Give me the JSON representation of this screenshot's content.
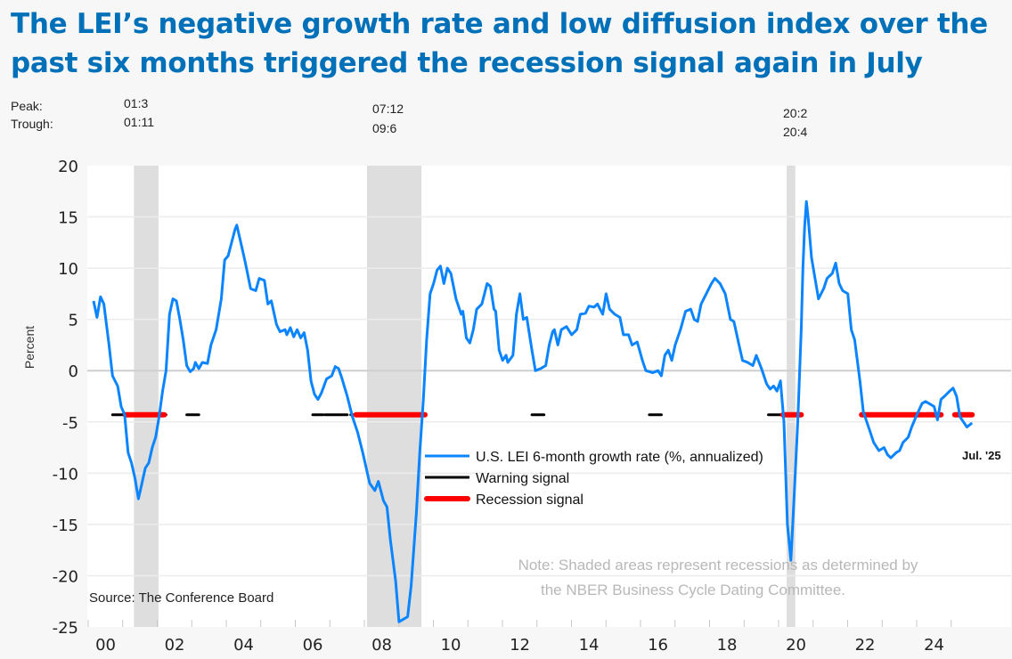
{
  "title_lines": [
    "The LEI’s negative growth rate and low diffusion index over the",
    "past six months triggered the recession signal again in July"
  ],
  "peak_label": "Peak:",
  "trough_label": "Trough:",
  "recession_dates": [
    {
      "peak": "01:3",
      "trough": "01:11"
    },
    {
      "peak": "07:12",
      "trough": "09:6"
    },
    {
      "peak": "20:2",
      "trough": "20:4"
    }
  ],
  "chart_data": {
    "type": "line",
    "title": "The LEI’s negative growth rate and low diffusion index over the past six months triggered the recession signal again in July",
    "xlabel": "",
    "ylabel": "Percent",
    "ylim": [
      -25,
      20
    ],
    "yticks": [
      20,
      15,
      10,
      5,
      0,
      -5,
      -10,
      -15,
      -20,
      -25
    ],
    "ytick_labels": [
      "20",
      "15",
      "10",
      "5",
      "0",
      "-5",
      "-10",
      "-15",
      "-20",
      "-25"
    ],
    "xlim": [
      2000,
      2025.75
    ],
    "xtick_labels": [
      "00",
      "02",
      "04",
      "06",
      "08",
      "10",
      "12",
      "14",
      "16",
      "18",
      "20",
      "22",
      "24"
    ],
    "grid": true,
    "legend_position": "center",
    "legend": [
      {
        "name": "U.S. LEI 6-month growth rate (%, annualized)",
        "color": "#0a84ff"
      },
      {
        "name": "Warning signal",
        "color": "#000000"
      },
      {
        "name": "Recession signal",
        "color": "#ff0000"
      }
    ],
    "recessions": [
      [
        2001.17,
        2001.88
      ],
      [
        2007.92,
        2009.5
      ],
      [
        2020.08,
        2020.33
      ]
    ],
    "signal_level": -4.3,
    "series": [
      {
        "name": "U.S. LEI 6-month growth rate (%, annualized)",
        "color": "#0a84ff",
        "points": [
          [
            2000.0,
            6.8
          ],
          [
            2000.1,
            5.2
          ],
          [
            2000.2,
            7.2
          ],
          [
            2000.3,
            6.5
          ],
          [
            2000.45,
            2.5
          ],
          [
            2000.55,
            -0.5
          ],
          [
            2000.7,
            -1.5
          ],
          [
            2000.8,
            -3.5
          ],
          [
            2000.9,
            -4.3
          ],
          [
            2001.0,
            -8
          ],
          [
            2001.1,
            -9
          ],
          [
            2001.2,
            -10.5
          ],
          [
            2001.3,
            -12.5
          ],
          [
            2001.4,
            -11
          ],
          [
            2001.5,
            -9.5
          ],
          [
            2001.6,
            -9
          ],
          [
            2001.7,
            -7.5
          ],
          [
            2001.8,
            -6.5
          ],
          [
            2001.9,
            -4.5
          ],
          [
            2002.0,
            -2
          ],
          [
            2002.1,
            0
          ],
          [
            2002.2,
            5.5
          ],
          [
            2002.3,
            7
          ],
          [
            2002.4,
            6.8
          ],
          [
            2002.5,
            5
          ],
          [
            2002.6,
            3
          ],
          [
            2002.7,
            0.5
          ],
          [
            2002.8,
            -0.1
          ],
          [
            2002.9,
            0.2
          ],
          [
            2002.95,
            0.8
          ],
          [
            2003.05,
            0.2
          ],
          [
            2003.15,
            0.8
          ],
          [
            2003.3,
            0.7
          ],
          [
            2003.4,
            2.5
          ],
          [
            2003.55,
            4
          ],
          [
            2003.7,
            7
          ],
          [
            2003.8,
            10.8
          ],
          [
            2003.9,
            11.2
          ],
          [
            2004.0,
            12.5
          ],
          [
            2004.1,
            13.8
          ],
          [
            2004.15,
            14.2
          ],
          [
            2004.3,
            12
          ],
          [
            2004.4,
            10.5
          ],
          [
            2004.55,
            8
          ],
          [
            2004.7,
            7.8
          ],
          [
            2004.8,
            9
          ],
          [
            2004.95,
            8.8
          ],
          [
            2005.05,
            6.5
          ],
          [
            2005.15,
            6.8
          ],
          [
            2005.3,
            4.5
          ],
          [
            2005.4,
            3.8
          ],
          [
            2005.55,
            4
          ],
          [
            2005.6,
            3.5
          ],
          [
            2005.7,
            4.2
          ],
          [
            2005.8,
            3.3
          ],
          [
            2005.9,
            4
          ],
          [
            2006.0,
            3.2
          ],
          [
            2006.1,
            3.7
          ],
          [
            2006.2,
            2
          ],
          [
            2006.3,
            -1
          ],
          [
            2006.4,
            -2.3
          ],
          [
            2006.5,
            -2.8
          ],
          [
            2006.6,
            -2.2
          ],
          [
            2006.75,
            -0.8
          ],
          [
            2006.9,
            -0.5
          ],
          [
            2007.0,
            0.4
          ],
          [
            2007.1,
            0.2
          ],
          [
            2007.2,
            -0.8
          ],
          [
            2007.35,
            -2.5
          ],
          [
            2007.5,
            -4.5
          ],
          [
            2007.65,
            -6
          ],
          [
            2007.8,
            -8
          ],
          [
            2008.0,
            -11
          ],
          [
            2008.15,
            -11.7
          ],
          [
            2008.25,
            -10.8
          ],
          [
            2008.4,
            -12.7
          ],
          [
            2008.5,
            -13.3
          ],
          [
            2008.6,
            -16.5
          ],
          [
            2008.75,
            -20.5
          ],
          [
            2008.85,
            -24.5
          ],
          [
            2008.95,
            -24.3
          ],
          [
            2009.1,
            -24
          ],
          [
            2009.2,
            -21
          ],
          [
            2009.35,
            -14
          ],
          [
            2009.45,
            -8
          ],
          [
            2009.55,
            -3
          ],
          [
            2009.65,
            3
          ],
          [
            2009.75,
            7.5
          ],
          [
            2009.85,
            8.5
          ],
          [
            2009.95,
            9.8
          ],
          [
            2010.05,
            10.2
          ],
          [
            2010.15,
            8.5
          ],
          [
            2010.25,
            10
          ],
          [
            2010.35,
            9.5
          ],
          [
            2010.5,
            7
          ],
          [
            2010.65,
            5.5
          ],
          [
            2010.7,
            5.8
          ],
          [
            2010.8,
            3.2
          ],
          [
            2010.9,
            2.7
          ],
          [
            2011.0,
            4
          ],
          [
            2011.1,
            6
          ],
          [
            2011.25,
            6.5
          ],
          [
            2011.4,
            8.5
          ],
          [
            2011.5,
            8.2
          ],
          [
            2011.6,
            6
          ],
          [
            2011.65,
            5.8
          ],
          [
            2011.75,
            2
          ],
          [
            2011.85,
            1
          ],
          [
            2011.95,
            1.5
          ],
          [
            2012.0,
            0.8
          ],
          [
            2012.15,
            1.5
          ],
          [
            2012.25,
            5.5
          ],
          [
            2012.35,
            7.5
          ],
          [
            2012.45,
            5
          ],
          [
            2012.55,
            5.2
          ],
          [
            2012.7,
            2
          ],
          [
            2012.8,
            0
          ],
          [
            2012.95,
            0.2
          ],
          [
            2013.1,
            0.5
          ],
          [
            2013.2,
            2.5
          ],
          [
            2013.3,
            3.8
          ],
          [
            2013.35,
            4
          ],
          [
            2013.45,
            2.5
          ],
          [
            2013.55,
            4
          ],
          [
            2013.7,
            4.3
          ],
          [
            2013.85,
            3.5
          ],
          [
            2014.0,
            4
          ],
          [
            2014.1,
            5.5
          ],
          [
            2014.25,
            5.6
          ],
          [
            2014.35,
            6.3
          ],
          [
            2014.5,
            6.2
          ],
          [
            2014.6,
            6.5
          ],
          [
            2014.75,
            5.5
          ],
          [
            2014.85,
            7.5
          ],
          [
            2014.95,
            6
          ],
          [
            2015.1,
            5.5
          ],
          [
            2015.25,
            5.2
          ],
          [
            2015.35,
            3.5
          ],
          [
            2015.5,
            3.5
          ],
          [
            2015.6,
            2.5
          ],
          [
            2015.75,
            2.8
          ],
          [
            2015.9,
            1
          ],
          [
            2016.0,
            0
          ],
          [
            2016.2,
            -0.2
          ],
          [
            2016.35,
            0
          ],
          [
            2016.45,
            -0.5
          ],
          [
            2016.55,
            1.5
          ],
          [
            2016.65,
            2
          ],
          [
            2016.75,
            1
          ],
          [
            2016.85,
            2.5
          ],
          [
            2017.0,
            4
          ],
          [
            2017.15,
            5.8
          ],
          [
            2017.3,
            6
          ],
          [
            2017.4,
            5
          ],
          [
            2017.5,
            4.8
          ],
          [
            2017.6,
            6.5
          ],
          [
            2017.75,
            7.5
          ],
          [
            2017.9,
            8.5
          ],
          [
            2018.0,
            9
          ],
          [
            2018.15,
            8.5
          ],
          [
            2018.3,
            7.5
          ],
          [
            2018.45,
            5
          ],
          [
            2018.55,
            4.8
          ],
          [
            2018.7,
            2.5
          ],
          [
            2018.8,
            1
          ],
          [
            2018.95,
            0.8
          ],
          [
            2019.1,
            0.5
          ],
          [
            2019.2,
            1.5
          ],
          [
            2019.35,
            0.2
          ],
          [
            2019.5,
            -1.3
          ],
          [
            2019.6,
            -1.8
          ],
          [
            2019.7,
            -1.5
          ],
          [
            2019.8,
            -2
          ],
          [
            2019.9,
            -1
          ],
          [
            2020.0,
            -5
          ],
          [
            2020.1,
            -15
          ],
          [
            2020.2,
            -18.5
          ],
          [
            2020.3,
            -12
          ],
          [
            2020.4,
            -5
          ],
          [
            2020.5,
            4
          ],
          [
            2020.55,
            10
          ],
          [
            2020.6,
            14
          ],
          [
            2020.65,
            16.5
          ],
          [
            2020.7,
            15
          ],
          [
            2020.8,
            11
          ],
          [
            2020.9,
            9
          ],
          [
            2021.0,
            7
          ],
          [
            2021.15,
            8
          ],
          [
            2021.25,
            9
          ],
          [
            2021.4,
            9.5
          ],
          [
            2021.5,
            10.5
          ],
          [
            2021.6,
            8.5
          ],
          [
            2021.7,
            7.8
          ],
          [
            2021.85,
            7.5
          ],
          [
            2021.95,
            4
          ],
          [
            2022.05,
            3
          ],
          [
            2022.2,
            -1
          ],
          [
            2022.3,
            -4
          ],
          [
            2022.4,
            -5
          ],
          [
            2022.5,
            -6
          ],
          [
            2022.6,
            -7
          ],
          [
            2022.75,
            -7.8
          ],
          [
            2022.9,
            -7.5
          ],
          [
            2023.0,
            -8.2
          ],
          [
            2023.1,
            -8.5
          ],
          [
            2023.25,
            -8
          ],
          [
            2023.35,
            -7.8
          ],
          [
            2023.45,
            -7
          ],
          [
            2023.6,
            -6.5
          ],
          [
            2023.7,
            -5.5
          ],
          [
            2023.85,
            -4.3
          ],
          [
            2024.0,
            -3.2
          ],
          [
            2024.1,
            -3
          ],
          [
            2024.2,
            -3.2
          ],
          [
            2024.35,
            -3.5
          ],
          [
            2024.45,
            -4.8
          ],
          [
            2024.55,
            -2.8
          ],
          [
            2024.65,
            -2.5
          ],
          [
            2024.8,
            -2
          ],
          [
            2024.9,
            -1.7
          ],
          [
            2025.0,
            -2.5
          ],
          [
            2025.1,
            -4.5
          ],
          [
            2025.2,
            -5
          ],
          [
            2025.3,
            -5.5
          ],
          [
            2025.45,
            -5.1
          ]
        ]
      }
    ],
    "warning_segments": [
      [
        2000.55,
        2001.0
      ],
      [
        2001.9,
        2002.1
      ],
      [
        2002.7,
        2003.05
      ],
      [
        2006.35,
        2006.65
      ],
      [
        2006.7,
        2007.35
      ],
      [
        2007.45,
        2007.6
      ],
      [
        2012.7,
        2013.05
      ],
      [
        2016.1,
        2016.3
      ],
      [
        2016.33,
        2016.45
      ],
      [
        2019.55,
        2020.0
      ],
      [
        2023.7,
        2024.1
      ],
      [
        2024.15,
        2024.25
      ]
    ],
    "recession_segments": [
      [
        2000.92,
        2002.05
      ],
      [
        2007.6,
        2009.6
      ],
      [
        2019.97,
        2020.5
      ],
      [
        2022.25,
        2024.05
      ],
      [
        2024.1,
        2024.55
      ],
      [
        2024.95,
        2025.45
      ]
    ],
    "annotations": [
      "Jul. '25",
      "Source: The Conference Board",
      "Note: Shaded areas represent recessions as determined by",
      "the NBER Business Cycle Dating Committee."
    ]
  }
}
